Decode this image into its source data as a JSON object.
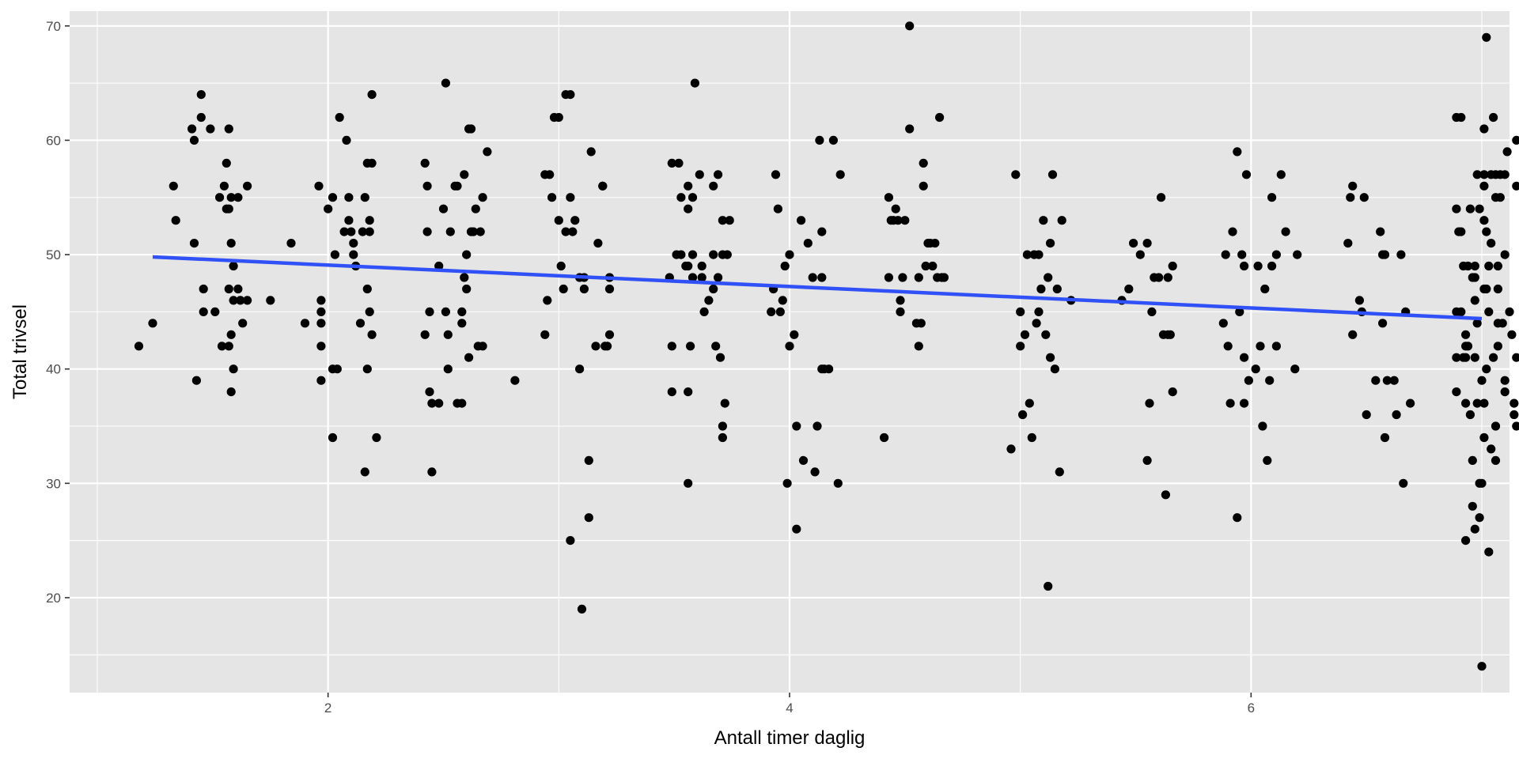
{
  "chart_data": {
    "type": "scatter",
    "title": "",
    "xlabel": "Antall timer daglig",
    "ylabel": "Total trivsel",
    "xlim": [
      0.88,
      7.12
    ],
    "ylim": [
      11.7,
      71.3
    ],
    "x_ticks": [
      2,
      4,
      6
    ],
    "x_tick_labels": [
      "2",
      "4",
      "6"
    ],
    "y_ticks": [
      20,
      30,
      40,
      50,
      60,
      70
    ],
    "y_tick_labels": [
      "20",
      "30",
      "40",
      "50",
      "60",
      "70"
    ],
    "grid": true,
    "legend": "none",
    "colors": {
      "panel": "#e5e5e5",
      "grid": "#ffffff",
      "points": "#000000",
      "trend": "#3050f8",
      "tick_text": "#4d4d4d"
    },
    "trend_line": {
      "x": [
        1.24,
        7.0
      ],
      "y": [
        49.8,
        44.4
      ]
    },
    "points": [
      [
        1.18,
        42
      ],
      [
        1.24,
        44
      ],
      [
        1.33,
        56
      ],
      [
        1.34,
        53
      ],
      [
        1.41,
        61
      ],
      [
        1.42,
        51
      ],
      [
        1.42,
        60
      ],
      [
        1.43,
        39
      ],
      [
        1.45,
        64
      ],
      [
        1.45,
        62
      ],
      [
        1.46,
        47
      ],
      [
        1.46,
        45
      ],
      [
        1.49,
        61
      ],
      [
        1.51,
        45
      ],
      [
        1.53,
        55
      ],
      [
        1.54,
        42
      ],
      [
        1.55,
        56
      ],
      [
        1.56,
        54
      ],
      [
        1.56,
        58
      ],
      [
        1.57,
        61
      ],
      [
        1.57,
        42
      ],
      [
        1.57,
        47
      ],
      [
        1.57,
        54
      ],
      [
        1.58,
        38
      ],
      [
        1.58,
        43
      ],
      [
        1.58,
        55
      ],
      [
        1.58,
        51
      ],
      [
        1.59,
        40
      ],
      [
        1.59,
        49
      ],
      [
        1.59,
        46
      ],
      [
        1.61,
        47
      ],
      [
        1.61,
        55
      ],
      [
        1.62,
        46
      ],
      [
        1.63,
        44
      ],
      [
        1.65,
        46
      ],
      [
        1.65,
        56
      ],
      [
        1.75,
        46
      ],
      [
        1.84,
        51
      ],
      [
        1.9,
        44
      ],
      [
        1.96,
        56
      ],
      [
        1.97,
        45
      ],
      [
        1.97,
        42
      ],
      [
        1.97,
        44
      ],
      [
        1.97,
        39
      ],
      [
        1.97,
        46
      ],
      [
        2.0,
        54
      ],
      [
        2.02,
        34
      ],
      [
        2.02,
        55
      ],
      [
        2.02,
        40
      ],
      [
        2.03,
        50
      ],
      [
        2.04,
        40
      ],
      [
        2.05,
        62
      ],
      [
        2.07,
        52
      ],
      [
        2.08,
        60
      ],
      [
        2.09,
        55
      ],
      [
        2.09,
        53
      ],
      [
        2.1,
        52
      ],
      [
        2.11,
        51
      ],
      [
        2.11,
        50
      ],
      [
        2.12,
        49
      ],
      [
        2.14,
        44
      ],
      [
        2.15,
        52
      ],
      [
        2.16,
        55
      ],
      [
        2.16,
        31
      ],
      [
        2.17,
        58
      ],
      [
        2.17,
        47
      ],
      [
        2.17,
        40
      ],
      [
        2.18,
        52
      ],
      [
        2.18,
        53
      ],
      [
        2.18,
        45
      ],
      [
        2.19,
        64
      ],
      [
        2.19,
        58
      ],
      [
        2.19,
        43
      ],
      [
        2.21,
        34
      ],
      [
        2.42,
        43
      ],
      [
        2.42,
        58
      ],
      [
        2.43,
        52
      ],
      [
        2.43,
        56
      ],
      [
        2.44,
        45
      ],
      [
        2.44,
        38
      ],
      [
        2.45,
        31
      ],
      [
        2.45,
        37
      ],
      [
        2.48,
        49
      ],
      [
        2.48,
        37
      ],
      [
        2.5,
        54
      ],
      [
        2.51,
        65
      ],
      [
        2.51,
        45
      ],
      [
        2.52,
        40
      ],
      [
        2.52,
        43
      ],
      [
        2.53,
        52
      ],
      [
        2.55,
        56
      ],
      [
        2.56,
        37
      ],
      [
        2.56,
        56
      ],
      [
        2.58,
        44
      ],
      [
        2.58,
        45
      ],
      [
        2.58,
        37
      ],
      [
        2.59,
        57
      ],
      [
        2.59,
        48
      ],
      [
        2.6,
        47
      ],
      [
        2.6,
        50
      ],
      [
        2.61,
        41
      ],
      [
        2.61,
        61
      ],
      [
        2.62,
        61
      ],
      [
        2.62,
        52
      ],
      [
        2.63,
        52
      ],
      [
        2.64,
        54
      ],
      [
        2.65,
        42
      ],
      [
        2.66,
        52
      ],
      [
        2.67,
        55
      ],
      [
        2.67,
        42
      ],
      [
        2.69,
        59
      ],
      [
        2.81,
        39
      ],
      [
        2.94,
        43
      ],
      [
        2.94,
        57
      ],
      [
        2.95,
        46
      ],
      [
        2.96,
        57
      ],
      [
        2.97,
        55
      ],
      [
        2.98,
        62
      ],
      [
        3.0,
        62
      ],
      [
        3.0,
        53
      ],
      [
        3.01,
        49
      ],
      [
        3.02,
        47
      ],
      [
        3.03,
        64
      ],
      [
        3.03,
        52
      ],
      [
        3.05,
        25
      ],
      [
        3.05,
        64
      ],
      [
        3.05,
        55
      ],
      [
        3.06,
        52
      ],
      [
        3.07,
        53
      ],
      [
        3.09,
        48
      ],
      [
        3.09,
        40
      ],
      [
        3.1,
        19
      ],
      [
        3.11,
        48
      ],
      [
        3.11,
        47
      ],
      [
        3.13,
        32
      ],
      [
        3.13,
        27
      ],
      [
        3.14,
        59
      ],
      [
        3.16,
        42
      ],
      [
        3.17,
        51
      ],
      [
        3.19,
        56
      ],
      [
        3.19,
        56
      ],
      [
        3.2,
        42
      ],
      [
        3.21,
        42
      ],
      [
        3.22,
        43
      ],
      [
        3.22,
        47
      ],
      [
        3.22,
        48
      ],
      [
        3.48,
        48
      ],
      [
        3.49,
        58
      ],
      [
        3.49,
        42
      ],
      [
        3.49,
        38
      ],
      [
        3.51,
        50
      ],
      [
        3.52,
        58
      ],
      [
        3.53,
        50
      ],
      [
        3.53,
        55
      ],
      [
        3.55,
        49
      ],
      [
        3.56,
        56
      ],
      [
        3.56,
        54
      ],
      [
        3.56,
        38
      ],
      [
        3.56,
        30
      ],
      [
        3.56,
        49
      ],
      [
        3.57,
        42
      ],
      [
        3.58,
        55
      ],
      [
        3.58,
        48
      ],
      [
        3.58,
        50
      ],
      [
        3.59,
        65
      ],
      [
        3.61,
        57
      ],
      [
        3.62,
        48
      ],
      [
        3.62,
        49
      ],
      [
        3.63,
        45
      ],
      [
        3.65,
        46
      ],
      [
        3.67,
        47
      ],
      [
        3.67,
        50
      ],
      [
        3.67,
        56
      ],
      [
        3.68,
        42
      ],
      [
        3.69,
        48
      ],
      [
        3.69,
        57
      ],
      [
        3.7,
        41
      ],
      [
        3.71,
        34
      ],
      [
        3.71,
        35
      ],
      [
        3.71,
        50
      ],
      [
        3.71,
        53
      ],
      [
        3.72,
        37
      ],
      [
        3.73,
        50
      ],
      [
        3.74,
        53
      ],
      [
        3.92,
        45
      ],
      [
        3.93,
        47
      ],
      [
        3.94,
        57
      ],
      [
        3.95,
        54
      ],
      [
        3.96,
        45
      ],
      [
        3.97,
        46
      ],
      [
        3.98,
        49
      ],
      [
        3.99,
        30
      ],
      [
        4.0,
        42
      ],
      [
        4.0,
        50
      ],
      [
        4.02,
        43
      ],
      [
        4.03,
        35
      ],
      [
        4.03,
        26
      ],
      [
        4.05,
        53
      ],
      [
        4.06,
        32
      ],
      [
        4.08,
        51
      ],
      [
        4.1,
        48
      ],
      [
        4.11,
        31
      ],
      [
        4.12,
        35
      ],
      [
        4.13,
        60
      ],
      [
        4.14,
        52
      ],
      [
        4.14,
        48
      ],
      [
        4.14,
        40
      ],
      [
        4.15,
        40
      ],
      [
        4.17,
        40
      ],
      [
        4.19,
        60
      ],
      [
        4.21,
        30
      ],
      [
        4.22,
        57
      ],
      [
        4.41,
        34
      ],
      [
        4.43,
        48
      ],
      [
        4.43,
        55
      ],
      [
        4.44,
        53
      ],
      [
        4.45,
        53
      ],
      [
        4.46,
        54
      ],
      [
        4.47,
        53
      ],
      [
        4.48,
        45
      ],
      [
        4.48,
        46
      ],
      [
        4.49,
        48
      ],
      [
        4.5,
        53
      ],
      [
        4.52,
        70
      ],
      [
        4.52,
        61
      ],
      [
        4.55,
        44
      ],
      [
        4.56,
        48
      ],
      [
        4.56,
        42
      ],
      [
        4.57,
        44
      ],
      [
        4.58,
        56
      ],
      [
        4.58,
        58
      ],
      [
        4.59,
        49
      ],
      [
        4.6,
        51
      ],
      [
        4.61,
        51
      ],
      [
        4.62,
        49
      ],
      [
        4.63,
        51
      ],
      [
        4.64,
        48
      ],
      [
        4.65,
        62
      ],
      [
        4.66,
        48
      ],
      [
        4.67,
        48
      ],
      [
        4.96,
        33
      ],
      [
        4.98,
        57
      ],
      [
        5.0,
        45
      ],
      [
        5.0,
        42
      ],
      [
        5.01,
        36
      ],
      [
        5.02,
        43
      ],
      [
        5.03,
        50
      ],
      [
        5.04,
        37
      ],
      [
        5.05,
        34
      ],
      [
        5.06,
        50
      ],
      [
        5.07,
        44
      ],
      [
        5.08,
        50
      ],
      [
        5.08,
        45
      ],
      [
        5.09,
        47
      ],
      [
        5.1,
        53
      ],
      [
        5.11,
        43
      ],
      [
        5.12,
        21
      ],
      [
        5.12,
        48
      ],
      [
        5.13,
        41
      ],
      [
        5.13,
        51
      ],
      [
        5.14,
        57
      ],
      [
        5.15,
        40
      ],
      [
        5.16,
        47
      ],
      [
        5.17,
        31
      ],
      [
        5.18,
        53
      ],
      [
        5.22,
        46
      ],
      [
        5.44,
        46
      ],
      [
        5.47,
        47
      ],
      [
        5.49,
        51
      ],
      [
        5.52,
        50
      ],
      [
        5.55,
        51
      ],
      [
        5.55,
        32
      ],
      [
        5.56,
        37
      ],
      [
        5.57,
        45
      ],
      [
        5.58,
        48
      ],
      [
        5.6,
        48
      ],
      [
        5.61,
        55
      ],
      [
        5.62,
        43
      ],
      [
        5.63,
        29
      ],
      [
        5.64,
        48
      ],
      [
        5.64,
        43
      ],
      [
        5.65,
        43
      ],
      [
        5.66,
        49
      ],
      [
        5.66,
        38
      ],
      [
        5.88,
        44
      ],
      [
        5.89,
        50
      ],
      [
        5.9,
        42
      ],
      [
        5.91,
        37
      ],
      [
        5.92,
        52
      ],
      [
        5.94,
        27
      ],
      [
        5.94,
        59
      ],
      [
        5.95,
        45
      ],
      [
        5.96,
        50
      ],
      [
        5.97,
        41
      ],
      [
        5.97,
        37
      ],
      [
        5.97,
        49
      ],
      [
        5.98,
        57
      ],
      [
        5.99,
        39
      ],
      [
        6.02,
        40
      ],
      [
        6.03,
        49
      ],
      [
        6.04,
        42
      ],
      [
        6.05,
        35
      ],
      [
        6.06,
        47
      ],
      [
        6.07,
        32
      ],
      [
        6.08,
        39
      ],
      [
        6.09,
        55
      ],
      [
        6.09,
        49
      ],
      [
        6.11,
        42
      ],
      [
        6.11,
        50
      ],
      [
        6.13,
        57
      ],
      [
        6.15,
        52
      ],
      [
        6.19,
        40
      ],
      [
        6.2,
        50
      ],
      [
        6.42,
        51
      ],
      [
        6.43,
        55
      ],
      [
        6.44,
        43
      ],
      [
        6.44,
        56
      ],
      [
        6.47,
        46
      ],
      [
        6.48,
        45
      ],
      [
        6.49,
        55
      ],
      [
        6.5,
        36
      ],
      [
        6.54,
        39
      ],
      [
        6.56,
        52
      ],
      [
        6.57,
        44
      ],
      [
        6.57,
        50
      ],
      [
        6.58,
        50
      ],
      [
        6.58,
        34
      ],
      [
        6.59,
        39
      ],
      [
        6.62,
        39
      ],
      [
        6.63,
        36
      ],
      [
        6.65,
        50
      ],
      [
        6.66,
        30
      ],
      [
        6.67,
        45
      ],
      [
        6.69,
        37
      ],
      [
        6.89,
        41
      ],
      [
        6.89,
        45
      ],
      [
        6.89,
        54
      ],
      [
        6.89,
        62
      ],
      [
        6.89,
        38
      ],
      [
        6.9,
        52
      ],
      [
        6.91,
        45
      ],
      [
        6.91,
        62
      ],
      [
        6.91,
        52
      ],
      [
        6.92,
        41
      ],
      [
        6.92,
        49
      ],
      [
        6.93,
        43
      ],
      [
        6.93,
        41
      ],
      [
        6.93,
        25
      ],
      [
        6.93,
        42
      ],
      [
        6.93,
        37
      ],
      [
        6.94,
        49
      ],
      [
        6.94,
        42
      ],
      [
        6.95,
        54
      ],
      [
        6.95,
        36
      ],
      [
        6.96,
        48
      ],
      [
        6.96,
        28
      ],
      [
        6.96,
        32
      ],
      [
        6.97,
        46
      ],
      [
        6.97,
        49
      ],
      [
        6.97,
        26
      ],
      [
        6.97,
        48
      ],
      [
        6.97,
        41
      ],
      [
        6.98,
        37
      ],
      [
        6.98,
        44
      ],
      [
        6.98,
        57
      ],
      [
        6.99,
        27
      ],
      [
        6.99,
        30
      ],
      [
        6.99,
        54
      ],
      [
        7.0,
        14
      ],
      [
        7.0,
        30
      ],
      [
        7.0,
        39
      ],
      [
        7.01,
        34
      ],
      [
        7.01,
        47
      ],
      [
        7.01,
        57
      ],
      [
        7.01,
        53
      ],
      [
        7.01,
        61
      ],
      [
        7.01,
        56
      ],
      [
        7.01,
        37
      ],
      [
        7.02,
        47
      ],
      [
        7.02,
        69
      ],
      [
        7.02,
        40
      ],
      [
        7.02,
        52
      ],
      [
        7.03,
        49
      ],
      [
        7.03,
        24
      ],
      [
        7.03,
        45
      ],
      [
        7.04,
        33
      ],
      [
        7.04,
        57
      ],
      [
        7.04,
        51
      ],
      [
        7.05,
        62
      ],
      [
        7.05,
        41
      ],
      [
        7.06,
        35
      ],
      [
        7.06,
        55
      ],
      [
        7.06,
        32
      ],
      [
        7.06,
        57
      ],
      [
        7.07,
        42
      ],
      [
        7.07,
        44
      ],
      [
        7.07,
        47
      ],
      [
        7.07,
        49
      ],
      [
        7.08,
        57
      ],
      [
        7.08,
        55
      ],
      [
        7.09,
        44
      ],
      [
        7.1,
        50
      ],
      [
        7.1,
        38
      ],
      [
        7.1,
        57
      ],
      [
        7.1,
        39
      ],
      [
        7.11,
        59
      ],
      [
        7.12,
        45
      ],
      [
        7.13,
        43
      ],
      [
        7.14,
        36
      ],
      [
        7.14,
        37
      ],
      [
        7.15,
        60
      ],
      [
        7.15,
        56
      ],
      [
        7.15,
        41
      ],
      [
        7.15,
        35
      ]
    ]
  }
}
